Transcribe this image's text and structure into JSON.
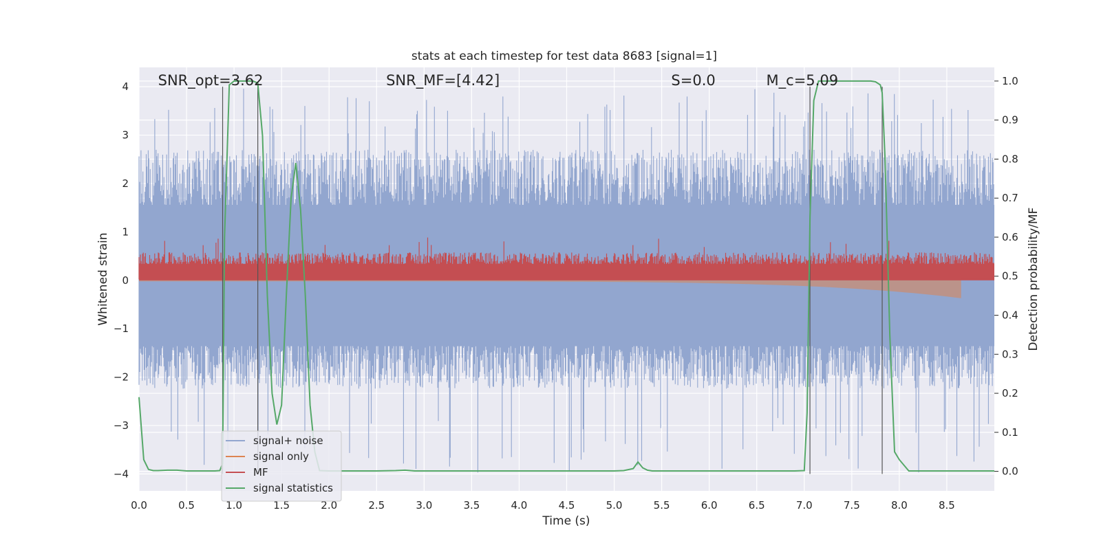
{
  "chart_data": {
    "type": "line",
    "title": "stats at each timestep for test data 8683 [signal=1]",
    "xlabel": "Time (s)",
    "ylabel_left": "Whitened strain",
    "ylabel_right": "Detection probability/MF",
    "xlim": [
      0.0,
      9.0
    ],
    "ylim_left": [
      -4.35,
      4.4
    ],
    "ylim_right": [
      -0.05,
      1.035
    ],
    "xticks": [
      "0.0",
      "0.5",
      "1.0",
      "1.5",
      "2.0",
      "2.5",
      "3.0",
      "3.5",
      "4.0",
      "4.5",
      "5.0",
      "5.5",
      "6.0",
      "6.5",
      "7.0",
      "7.5",
      "8.0",
      "8.5"
    ],
    "yticks_left": [
      "4",
      "3",
      "2",
      "1",
      "0",
      "−1",
      "−2",
      "−3",
      "−4"
    ],
    "yticks_right": [
      "1.0",
      "0.9",
      "0.8",
      "0.7",
      "0.6",
      "0.5",
      "0.4",
      "0.3",
      "0.2",
      "0.1",
      "0.0"
    ],
    "grid": true,
    "legend_position": "lower left",
    "annotations": [
      {
        "text": "SNR_opt=3.62",
        "x": 0.2
      },
      {
        "text": "SNR_MF=[4.42]",
        "x": 2.6
      },
      {
        "text": "S=0.0",
        "x": 5.6
      },
      {
        "text": "M_c=5.09",
        "x": 6.6
      }
    ],
    "vertical_markers": [
      0.88,
      1.25,
      7.06,
      7.82
    ],
    "series": [
      {
        "name": "signal+ noise",
        "color": "#92a6cf",
        "axis": "left",
        "kind": "noise_band",
        "x_range": [
          0.0,
          9.0
        ],
        "envelope_typical": [
          -1.6,
          2.0
        ],
        "envelope_peak": [
          -4.0,
          4.0
        ]
      },
      {
        "name": "signal only",
        "color": "#dd8452",
        "axis": "left",
        "kind": "chirp",
        "x_range": [
          0.0,
          8.65
        ],
        "amplitude_end": 0.35
      },
      {
        "name": "MF",
        "color": "#c44e52",
        "axis": "left",
        "kind": "band",
        "x_range": [
          0.0,
          9.0
        ],
        "baseline": 0.0,
        "typical_top": 0.55,
        "peak_top": 0.9
      },
      {
        "name": "signal statistics",
        "color": "#55a868",
        "axis": "right",
        "x": [
          0.0,
          0.05,
          0.1,
          0.15,
          0.2,
          0.3,
          0.4,
          0.5,
          0.6,
          0.7,
          0.8,
          0.85,
          0.88,
          0.9,
          0.95,
          1.0,
          1.05,
          1.1,
          1.15,
          1.2,
          1.25,
          1.3,
          1.35,
          1.4,
          1.45,
          1.5,
          1.55,
          1.6,
          1.65,
          1.7,
          1.75,
          1.8,
          1.85,
          1.9,
          2.0,
          2.5,
          2.7,
          2.8,
          2.9,
          3.0,
          4.0,
          5.0,
          5.1,
          5.2,
          5.25,
          5.3,
          5.35,
          5.4,
          5.5,
          6.0,
          6.5,
          6.9,
          7.0,
          7.03,
          7.06,
          7.1,
          7.15,
          7.2,
          7.3,
          7.5,
          7.7,
          7.75,
          7.8,
          7.82,
          7.85,
          7.9,
          7.95,
          8.0,
          8.1,
          8.3,
          8.5,
          8.8,
          9.0
        ],
        "y": [
          0.19,
          0.03,
          0.005,
          0.002,
          0.002,
          0.003,
          0.003,
          0.001,
          0.001,
          0.001,
          0.001,
          0.002,
          0.02,
          0.6,
          0.99,
          1.0,
          1.0,
          1.0,
          1.0,
          1.0,
          0.995,
          0.86,
          0.45,
          0.2,
          0.12,
          0.17,
          0.45,
          0.7,
          0.79,
          0.67,
          0.45,
          0.17,
          0.05,
          0.002,
          0.001,
          0.001,
          0.002,
          0.003,
          0.001,
          0.001,
          0.001,
          0.001,
          0.002,
          0.007,
          0.024,
          0.009,
          0.003,
          0.001,
          0.001,
          0.001,
          0.001,
          0.001,
          0.002,
          0.15,
          0.65,
          0.95,
          1.0,
          1.0,
          1.0,
          1.0,
          1.0,
          0.998,
          0.99,
          0.97,
          0.8,
          0.35,
          0.05,
          0.03,
          0.001,
          0.001,
          0.001,
          0.001,
          0.001
        ]
      }
    ]
  }
}
